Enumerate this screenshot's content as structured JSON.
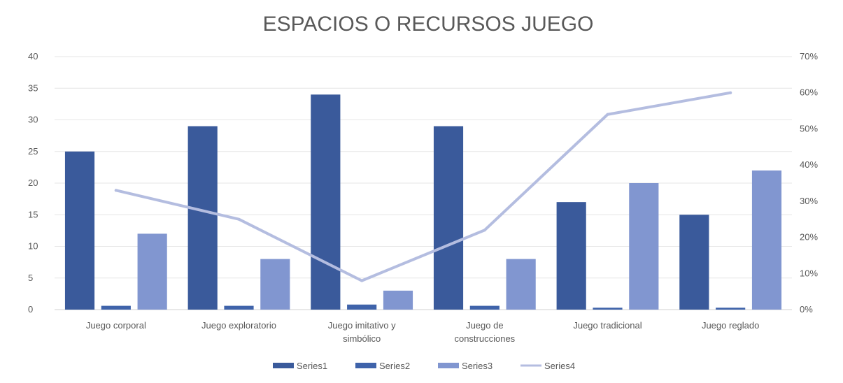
{
  "chart_data": {
    "type": "bar",
    "title": "ESPACIOS O RECURSOS JUEGO",
    "categories": [
      [
        "Juego corporal"
      ],
      [
        "Juego exploratorio"
      ],
      [
        "Juego imitativo y",
        "simbólico"
      ],
      [
        "Juego de",
        "construcciones"
      ],
      [
        "Juego tradicional"
      ],
      [
        "Juego reglado"
      ]
    ],
    "y_left": {
      "min": 0,
      "max": 40,
      "ticks": [
        "0",
        "5",
        "10",
        "15",
        "20",
        "25",
        "30",
        "35",
        "40"
      ]
    },
    "y_right": {
      "min": 0,
      "max": 0.7,
      "ticks": [
        "0%",
        "10%",
        "20%",
        "30%",
        "40%",
        "50%",
        "60%",
        "70%"
      ]
    },
    "grid": true,
    "legend_position": "bottom",
    "series": [
      {
        "name": "Series1",
        "kind": "bar",
        "axis": "left",
        "color": "#3a5a9b",
        "values": [
          25,
          29,
          34,
          29,
          17,
          15
        ]
      },
      {
        "name": "Series2",
        "kind": "bar",
        "axis": "left",
        "color": "#3f63aa",
        "values": [
          0.6,
          0.6,
          0.8,
          0.6,
          0.3,
          0.3
        ]
      },
      {
        "name": "Series3",
        "kind": "bar",
        "axis": "left",
        "color": "#8196d0",
        "values": [
          12,
          8,
          3,
          8,
          20,
          22
        ]
      },
      {
        "name": "Series4",
        "kind": "line",
        "axis": "right",
        "color": "#b4bde0",
        "values": [
          0.33,
          0.25,
          0.08,
          0.22,
          0.54,
          0.6
        ]
      }
    ]
  }
}
